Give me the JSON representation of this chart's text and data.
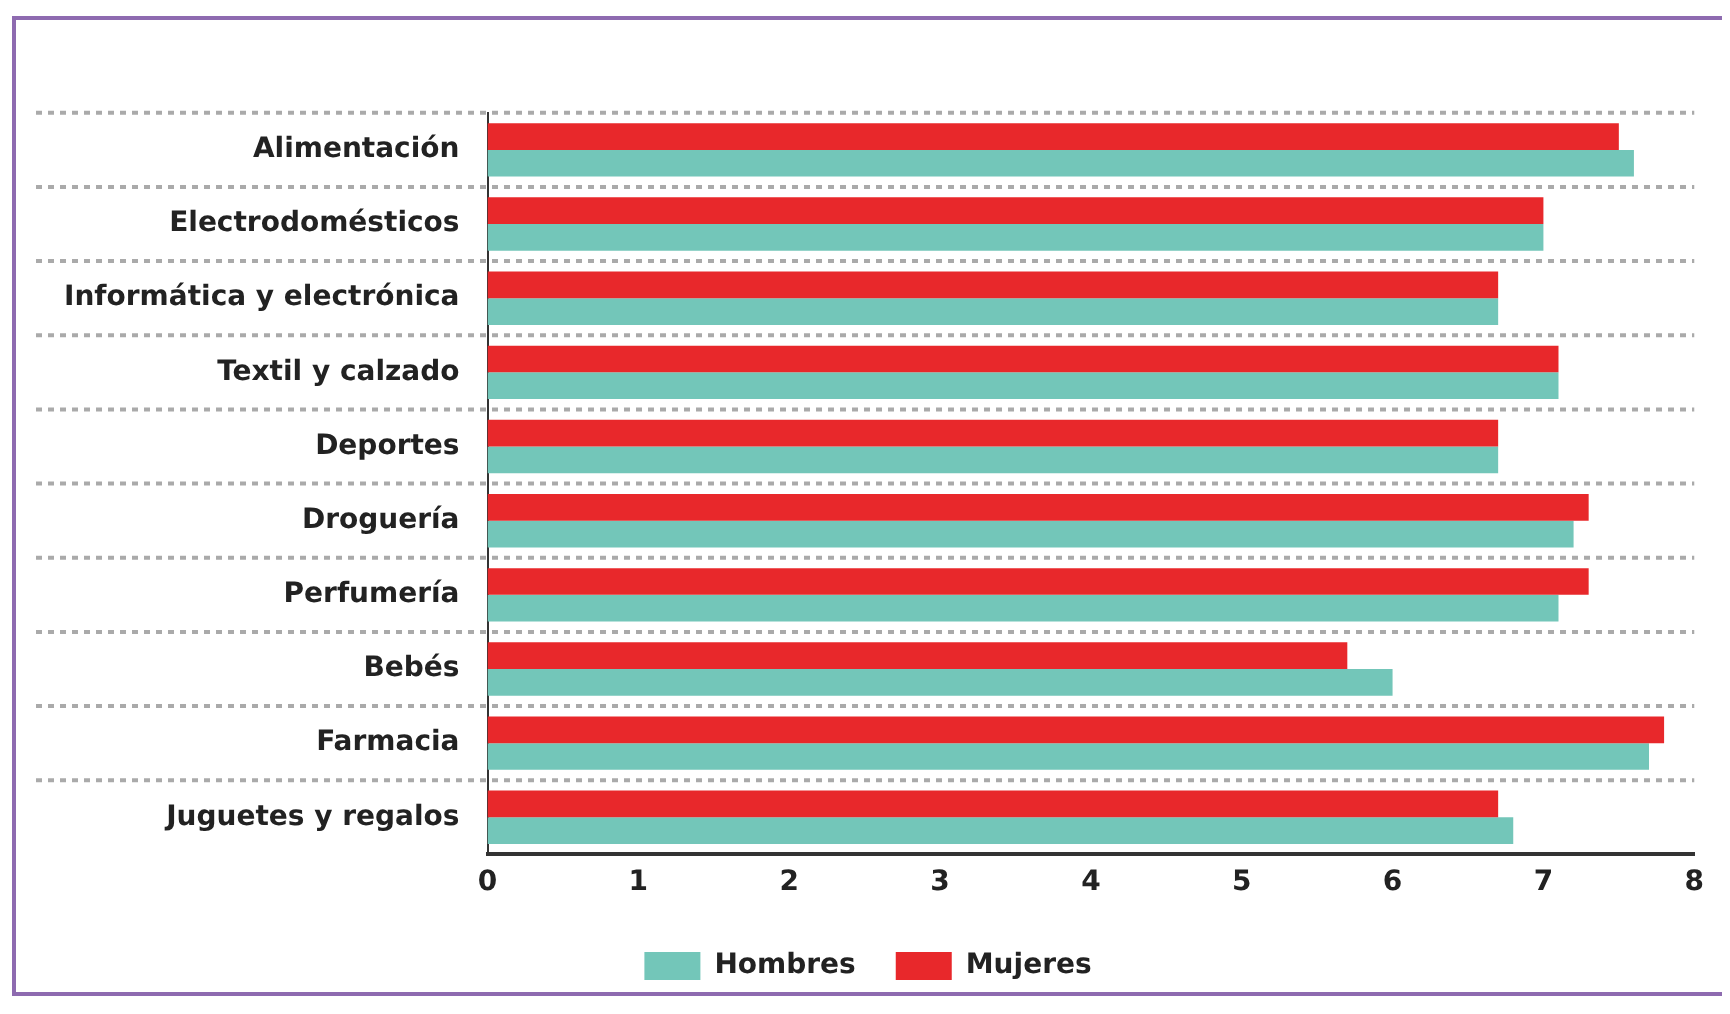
{
  "chart_data": {
    "type": "bar",
    "orientation": "horizontal",
    "categories": [
      "Alimentación",
      "Electrodomésticos",
      "Informática y electrónica",
      "Textil y calzado",
      "Deportes",
      "Droguería",
      "Perfumería",
      "Bebés",
      "Farmacia",
      "Juguetes y regalos"
    ],
    "series": [
      {
        "name": "Mujeres",
        "color": "#e8282b",
        "values": [
          7.5,
          7.0,
          6.7,
          7.1,
          6.7,
          7.3,
          7.3,
          5.7,
          7.8,
          6.7
        ]
      },
      {
        "name": "Hombres",
        "color": "#73c6b9",
        "values": [
          7.6,
          7.0,
          6.7,
          7.1,
          6.7,
          7.2,
          7.1,
          6.0,
          7.7,
          6.8
        ]
      }
    ],
    "xlim": [
      0,
      8
    ],
    "xticks": [
      0,
      1,
      2,
      3,
      4,
      5,
      6,
      7,
      8
    ],
    "grid": "y",
    "legend": "bottom"
  }
}
